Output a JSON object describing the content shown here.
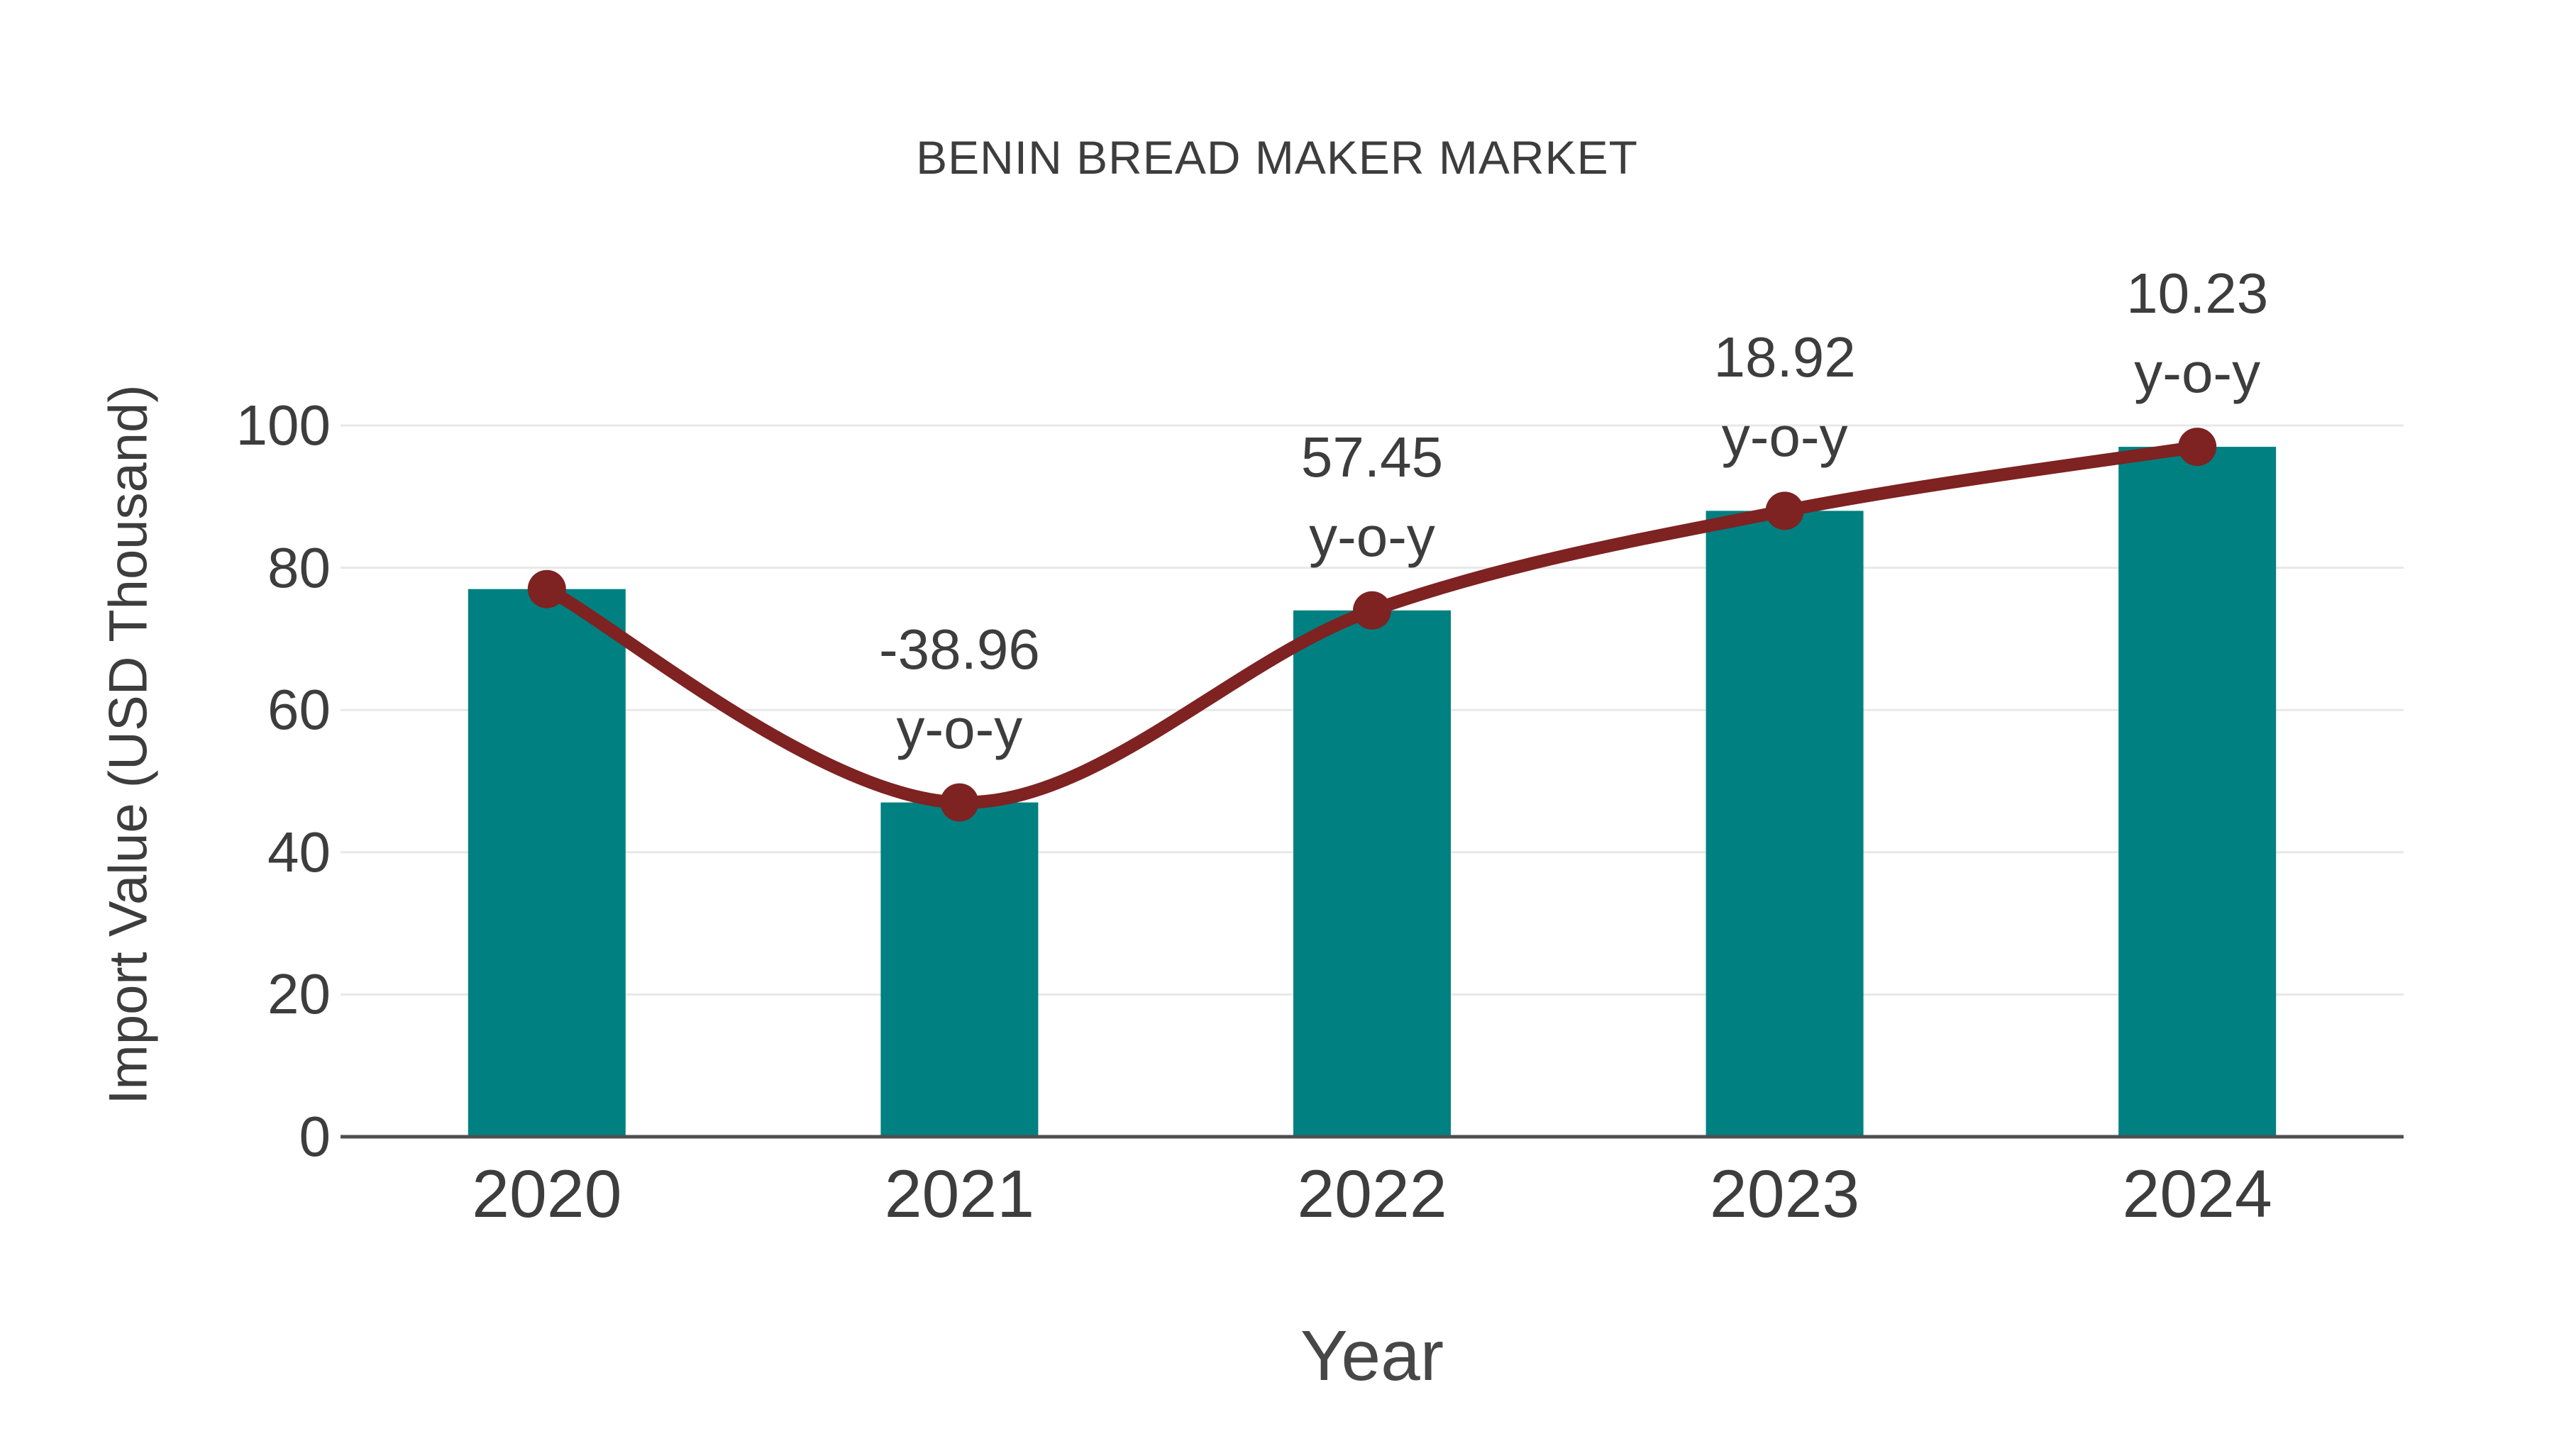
{
  "title": "BENIN BREAD MAKER MARKET",
  "chart_data": {
    "type": "bar",
    "subtype": "bar-with-line-overlay",
    "title": "BENIN BREAD MAKER MARKET",
    "xlabel": "Year",
    "ylabel": "Import Value (USD Thousand)",
    "categories": [
      "2020",
      "2021",
      "2022",
      "2023",
      "2024"
    ],
    "series": [
      {
        "name": "Import Value (bars)",
        "type": "bar",
        "values": [
          77,
          47,
          74,
          88,
          97
        ]
      },
      {
        "name": "Import Value trend (line with markers)",
        "type": "line",
        "values": [
          77,
          47,
          74,
          88,
          97
        ]
      }
    ],
    "annotations": [
      {
        "category": "2021",
        "value": "-38.96",
        "label": "y-o-y"
      },
      {
        "category": "2022",
        "value": "57.45",
        "label": "y-o-y"
      },
      {
        "category": "2023",
        "value": "18.92",
        "label": "y-o-y"
      },
      {
        "category": "2024",
        "value": "10.23",
        "label": "y-o-y"
      }
    ],
    "yticks": [
      0,
      20,
      40,
      60,
      80,
      100
    ],
    "ylim": [
      0,
      100
    ],
    "grid": true,
    "legend": "none",
    "colors": {
      "bar": "#008080",
      "line": "#7e2222",
      "marker": "#7e2222",
      "text": "#3d3d3d",
      "grid": "#e8e8e8",
      "axis": "#4f4f4f",
      "background": "#ffffff"
    }
  }
}
